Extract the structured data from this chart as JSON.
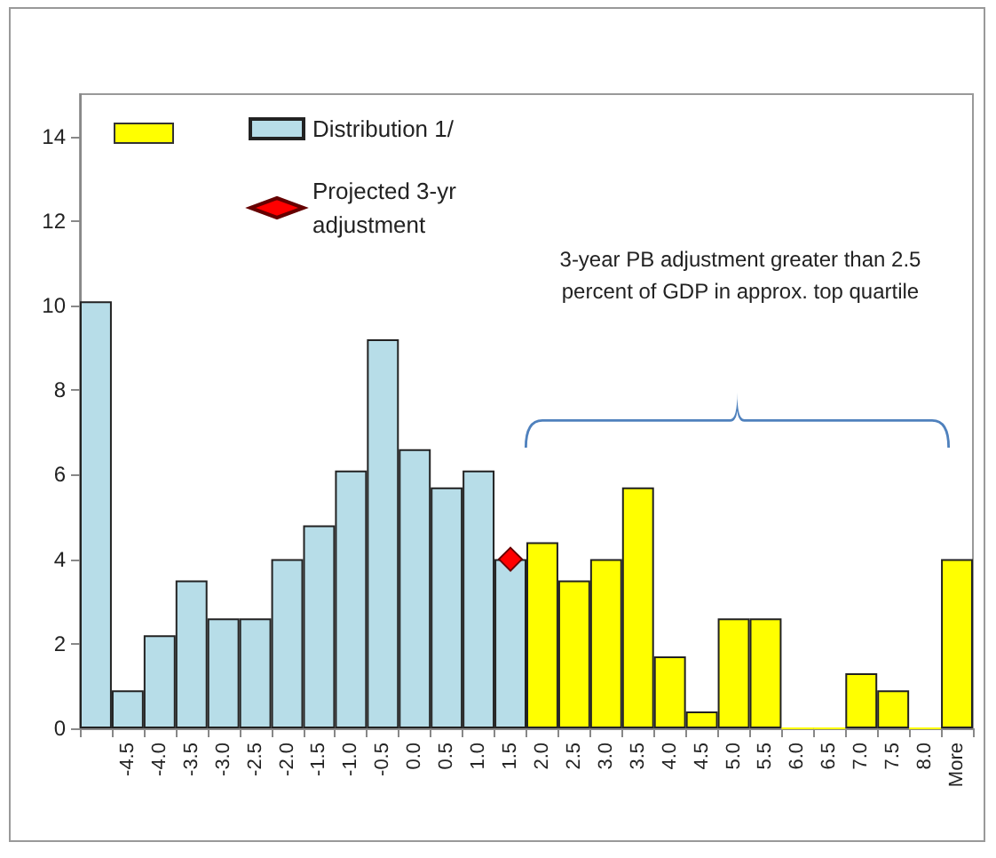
{
  "chart_data": {
    "type": "bar",
    "categories": [
      null,
      "-4.5",
      "-4.0",
      "-3.5",
      "-3.0",
      "-2.5",
      "-2.0",
      "-1.5",
      "-1.0",
      "-0.5",
      "0.0",
      "0.5",
      "1.0",
      "1.5",
      "2.0",
      "2.5",
      "3.0",
      "3.5",
      "4.0",
      "4.5",
      "5.0",
      "5.5",
      "6.0",
      "6.5",
      "7.0",
      "7.5",
      "8.0",
      "More"
    ],
    "series": [
      {
        "color": "#ffff00",
        "values": [
          null,
          null,
          null,
          null,
          null,
          null,
          null,
          null,
          null,
          null,
          null,
          null,
          null,
          null,
          4.4,
          3.5,
          4.0,
          5.7,
          1.7,
          0.4,
          2.6,
          2.6,
          0,
          0,
          1.3,
          0.9,
          0,
          4.0
        ]
      },
      {
        "name": "Distribution 1/",
        "color": "#b7dde8",
        "values": [
          10.1,
          0.9,
          2.2,
          3.5,
          2.6,
          2.6,
          4.0,
          4.8,
          6.1,
          9.2,
          6.6,
          5.7,
          6.1,
          4.0,
          null,
          null,
          null,
          null,
          null,
          null,
          null,
          null,
          null,
          null,
          null,
          null,
          null,
          null
        ]
      },
      {
        "name": "Projected 3-yr adjustment",
        "type": "line",
        "color": "#ff0000",
        "marker": "diamond",
        "values": [
          null,
          null,
          null,
          null,
          null,
          null,
          null,
          null,
          null,
          null,
          null,
          null,
          null,
          4.0,
          null,
          null,
          null,
          null,
          null,
          null,
          null,
          null,
          null,
          null,
          null,
          null,
          null,
          null
        ]
      }
    ],
    "ylim": [
      0,
      15
    ],
    "yticks": [
      0,
      2,
      4,
      6,
      8,
      10,
      12,
      14
    ],
    "grid": false,
    "legend": "top left",
    "annotations": [
      "3-year PB adjustment greater than 2.5 percent of GDP in approx. top quartile"
    ]
  }
}
